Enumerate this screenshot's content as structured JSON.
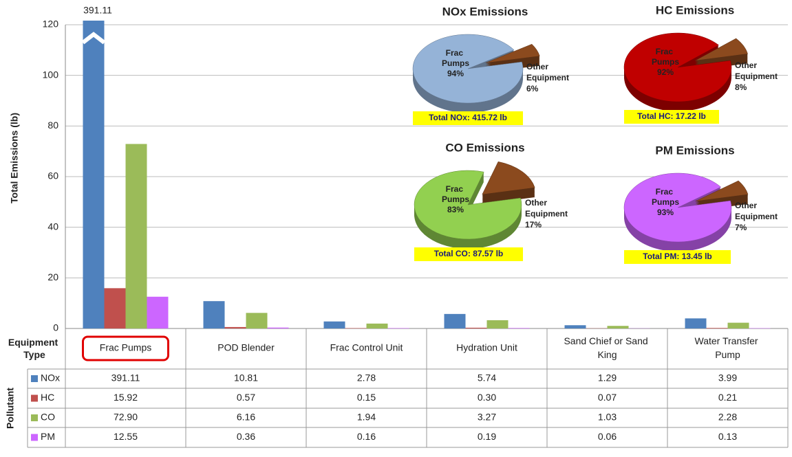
{
  "chart_data": [
    {
      "type": "bar",
      "ylabel": "Total Emissions (lb)",
      "categories": [
        "Frac Pumps",
        "POD Blender",
        "Frac Control Unit",
        "Hydration Unit",
        "Sand Chief or Sand King",
        "Water Transfer Pump"
      ],
      "category_header": "Equipment Type",
      "series_header": "Pollutant",
      "series": [
        {
          "name": "NOx",
          "color": "#4f81bd",
          "values": [
            391.11,
            10.81,
            2.78,
            5.74,
            1.29,
            3.99
          ],
          "value_labels": [
            "391.11",
            "10.81",
            "2.78",
            "5.74",
            "1.29",
            "3.99"
          ]
        },
        {
          "name": "HC",
          "color": "#c0504d",
          "values": [
            15.92,
            0.57,
            0.15,
            0.3,
            0.07,
            0.21
          ],
          "value_labels": [
            "15.92",
            "0.57",
            "0.15",
            "0.30",
            "0.07",
            "0.21"
          ]
        },
        {
          "name": "CO",
          "color": "#9bbb59",
          "values": [
            72.9,
            6.16,
            1.94,
            3.27,
            1.03,
            2.28
          ],
          "value_labels": [
            "72.90",
            "6.16",
            "1.94",
            "3.27",
            "1.03",
            "2.28"
          ]
        },
        {
          "name": "PM",
          "color": "#cc66ff",
          "values": [
            12.55,
            0.36,
            0.16,
            0.19,
            0.06,
            0.13
          ],
          "value_labels": [
            "12.55",
            "0.36",
            "0.16",
            "0.19",
            "0.06",
            "0.13"
          ]
        }
      ],
      "ylim": [
        0,
        120
      ],
      "yticks": [
        0,
        20,
        40,
        60,
        80,
        100,
        120
      ],
      "grid": true
    },
    {
      "type": "pie",
      "title": "NOx Emissions",
      "labels": [
        "Frac Pumps",
        "Other Equipment"
      ],
      "values": [
        94,
        6
      ],
      "value_labels": [
        "94%",
        "6%"
      ],
      "colors": [
        "#95b3d7",
        "#8b4a1e"
      ],
      "annotation": "Total NOx: 415.72 lb"
    },
    {
      "type": "pie",
      "title": "HC Emissions",
      "labels": [
        "Frac Pumps",
        "Other Equipment"
      ],
      "values": [
        92,
        8
      ],
      "value_labels": [
        "92%",
        "8%"
      ],
      "colors": [
        "#c00000",
        "#8b4a1e"
      ],
      "annotation": "Total HC: 17.22 lb"
    },
    {
      "type": "pie",
      "title": "CO Emissions",
      "labels": [
        "Frac Pumps",
        "Other Equipment"
      ],
      "values": [
        83,
        17
      ],
      "value_labels": [
        "83%",
        "17%"
      ],
      "colors": [
        "#92d050",
        "#8b4a1e"
      ],
      "annotation": "Total CO: 87.57 lb"
    },
    {
      "type": "pie",
      "title": "PM Emissions",
      "labels": [
        "Frac Pumps",
        "Other Equipment"
      ],
      "values": [
        93,
        7
      ],
      "value_labels": [
        "93%",
        "7%"
      ],
      "colors": [
        "#cc66ff",
        "#8b4a1e"
      ],
      "annotation": "Total PM: 13.45 lb"
    }
  ]
}
